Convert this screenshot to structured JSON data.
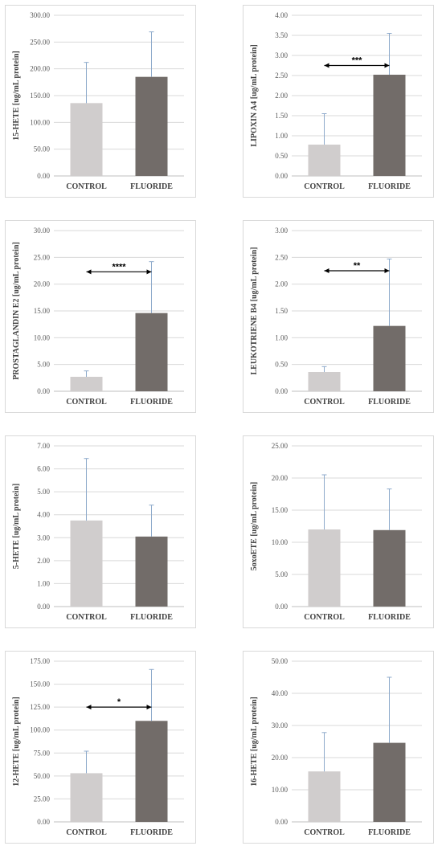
{
  "colors": {
    "control": "#d0cdcd",
    "fluoride": "#726c69",
    "error": "#8eaacb",
    "grid": "#d9d9d9",
    "axis": "#bfbfbf",
    "sig": "#000000"
  },
  "chart_data": [
    {
      "type": "bar",
      "categories": [
        "CONTROL",
        "FLUORIDE"
      ],
      "values": [
        136,
        185
      ],
      "errors": [
        76,
        84
      ],
      "ylabel": "15-HETE [ug/mL protein]",
      "ylim": [
        0,
        300
      ],
      "yticks": [
        "0.00",
        "50.00",
        "100.00",
        "150.00",
        "200.00",
        "250.00",
        "300.00"
      ],
      "significance": ""
    },
    {
      "type": "bar",
      "categories": [
        "CONTROL",
        "FLUORIDE"
      ],
      "values": [
        0.78,
        2.52
      ],
      "errors": [
        0.77,
        1.03
      ],
      "ylabel": "LIPOXIN A4 [ug/mL protein]",
      "ylim": [
        0,
        4
      ],
      "yticks": [
        "0.00",
        "0.50",
        "1.00",
        "1.50",
        "2.00",
        "2.50",
        "3.00",
        "3.50",
        "4.00"
      ],
      "significance": "***",
      "significance_y": 2.75
    },
    {
      "type": "bar",
      "categories": [
        "CONTROL",
        "FLUORIDE"
      ],
      "values": [
        2.7,
        14.6
      ],
      "errors": [
        1.1,
        9.6
      ],
      "ylabel": "PROSTAGLANDIN E2 [ug/mL protein]",
      "ylim": [
        0,
        30
      ],
      "yticks": [
        "0.00",
        "5.00",
        "10.00",
        "15.00",
        "20.00",
        "25.00",
        "30.00"
      ],
      "significance": "****",
      "significance_y": 22.3
    },
    {
      "type": "bar",
      "categories": [
        "CONTROL",
        "FLUORIDE"
      ],
      "values": [
        0.36,
        1.22
      ],
      "errors": [
        0.1,
        1.25
      ],
      "ylabel": "LEUKOTRIENE B4 [ug/mL protein]",
      "ylim": [
        0,
        3
      ],
      "yticks": [
        "0.00",
        "0.50",
        "1.00",
        "1.50",
        "2.00",
        "2.50",
        "3.00"
      ],
      "significance": "**",
      "significance_y": 2.25
    },
    {
      "type": "bar",
      "categories": [
        "CONTROL",
        "FLUORIDE"
      ],
      "values": [
        3.75,
        3.05
      ],
      "errors": [
        2.7,
        1.37
      ],
      "ylabel": "5-HETE [ug/mL protein]",
      "ylim": [
        0,
        7
      ],
      "yticks": [
        "0.00",
        "1.00",
        "2.00",
        "3.00",
        "4.00",
        "5.00",
        "6.00",
        "7.00"
      ],
      "significance": ""
    },
    {
      "type": "bar",
      "categories": [
        "CONTROL",
        "FLUORIDE"
      ],
      "values": [
        12.0,
        11.9
      ],
      "errors": [
        8.5,
        6.4
      ],
      "ylabel": "5oxoETE [ug/mL protein]",
      "ylim": [
        0,
        25
      ],
      "yticks": [
        "0.00",
        "5.00",
        "10.00",
        "15.00",
        "20.00",
        "25.00"
      ],
      "significance": ""
    },
    {
      "type": "bar",
      "categories": [
        "CONTROL",
        "FLUORIDE"
      ],
      "values": [
        53,
        110
      ],
      "errors": [
        24,
        56
      ],
      "ylabel": "12-HETE [ug/mL protein]",
      "ylim": [
        0,
        175
      ],
      "yticks": [
        "0.00",
        "25.00",
        "50.00",
        "75.00",
        "100.00",
        "125.00",
        "150.00",
        "175.00"
      ],
      "significance": "*",
      "significance_y": 125
    },
    {
      "type": "bar",
      "categories": [
        "CONTROL",
        "FLUORIDE"
      ],
      "values": [
        15.7,
        24.6
      ],
      "errors": [
        12.1,
        20.4
      ],
      "ylabel": "16-HETE [ug/mL protein]",
      "ylim": [
        0,
        50
      ],
      "yticks": [
        "0.00",
        "10.00",
        "20.00",
        "30.00",
        "40.00",
        "50.00"
      ],
      "significance": ""
    }
  ]
}
